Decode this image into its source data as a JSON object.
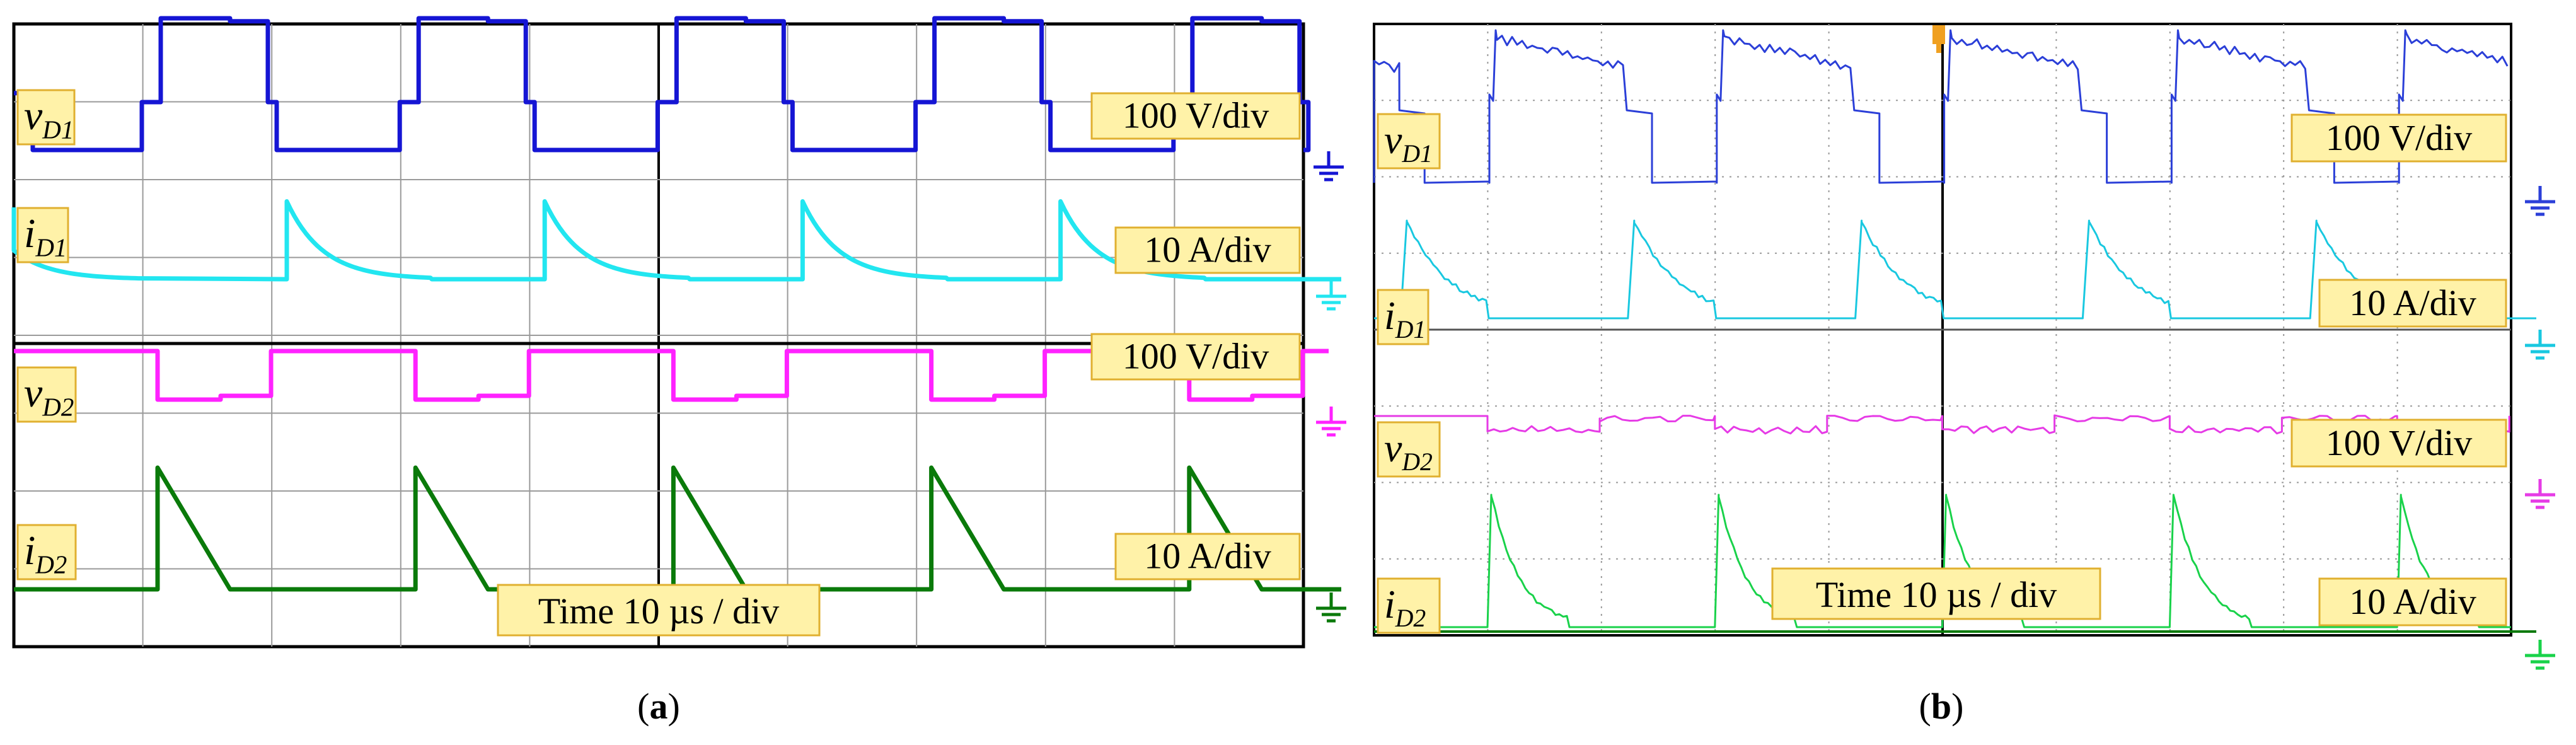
{
  "chart_data": [
    {
      "type": "line",
      "panel": "a",
      "caption_letter": "a",
      "time_label": "Time 10 µs / div",
      "x_divisions": 10,
      "period_divs": 2,
      "grid": "dashed",
      "series": [
        {
          "name": "vD1",
          "symbol": "v",
          "subscript": "D1",
          "color": "#1515d4",
          "scale": "100 V/div",
          "shape": "square",
          "low_div": 0,
          "mid_div": 0.8,
          "high_div": 2.2,
          "high_start": 0.15,
          "high_end": 1.0,
          "step_at": 0.7
        },
        {
          "name": "iD1",
          "symbol": "i",
          "subscript": "D1",
          "color": "#22e6f0",
          "scale": "10 A/div",
          "shape": "exp_decay",
          "peak_div": 1.3,
          "tau_div": 0.28
        },
        {
          "name": "vD2",
          "symbol": "v",
          "subscript": "D2",
          "color": "#ff22ff",
          "scale": "100 V/div",
          "shape": "square",
          "low_div": 0.8,
          "high_div": 1.6,
          "high_start": 1.0,
          "high_end": 2.0,
          "step_at": 0.6
        },
        {
          "name": "iD2",
          "symbol": "i",
          "subscript": "D2",
          "color": "#0a7a0a",
          "scale": "10 A/div",
          "shape": "ramp_down",
          "peak_div": 2.0,
          "fall_div": 0.55
        }
      ]
    },
    {
      "type": "line",
      "panel": "b",
      "caption_letter": "b",
      "time_label": "Time 10 µs / div",
      "x_divisions": 10,
      "period_divs": 2,
      "grid": "dotted",
      "series": [
        {
          "name": "vD1",
          "symbol": "v",
          "subscript": "D1",
          "color": "#2b3fd8",
          "scale": "100 V/div"
        },
        {
          "name": "iD1",
          "symbol": "i",
          "subscript": "D1",
          "color": "#19c8e0",
          "scale": "10 A/div"
        },
        {
          "name": "vD2",
          "symbol": "v",
          "subscript": "D2",
          "color": "#e63be6",
          "scale": "100 V/div"
        },
        {
          "name": "iD2",
          "symbol": "i",
          "subscript": "D2",
          "color": "#19d24a",
          "scale": "10 A/div"
        }
      ]
    }
  ]
}
